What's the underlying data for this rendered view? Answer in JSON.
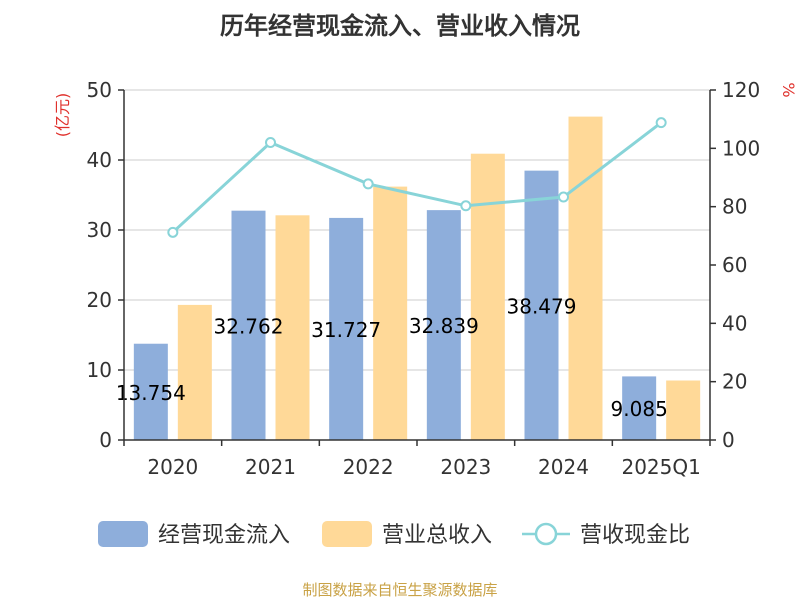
{
  "chart_data": {
    "type": "bar",
    "title": "历年经营现金流入、营业收入情况",
    "categories": [
      "2020",
      "2021",
      "2022",
      "2023",
      "2024",
      "2025Q1"
    ],
    "y_left": {
      "unit": "(亿元)",
      "min": 0,
      "max": 50,
      "ticks": [
        "0",
        "10",
        "20",
        "30",
        "40",
        "50"
      ]
    },
    "y_right": {
      "unit": "%",
      "min": 0,
      "max": 120,
      "ticks": [
        "0",
        "20",
        "40",
        "60",
        "80",
        "100",
        "120"
      ]
    },
    "series": [
      {
        "name": "经营现金流入",
        "type": "bar",
        "axis": "left",
        "color": "#8eaedb",
        "values": [
          13.754,
          32.762,
          31.727,
          32.839,
          38.479,
          9.085
        ],
        "labels": [
          "13.754",
          "32.762",
          "31.727",
          "32.839",
          "38.479",
          "9.085"
        ]
      },
      {
        "name": "营业总收入",
        "type": "bar",
        "axis": "left",
        "color": "#ffd998",
        "values": [
          19.3,
          32.1,
          36.2,
          40.9,
          46.2,
          8.5
        ]
      },
      {
        "name": "营收现金比",
        "type": "line",
        "axis": "right",
        "color": "#88d4d8",
        "values": [
          71.2,
          102.0,
          87.8,
          80.3,
          83.3,
          108.8
        ]
      }
    ],
    "grid": true,
    "legend_position": "bottom"
  },
  "source_text": "制图数据来自恒生聚源数据库",
  "colors": {
    "axis": "#333333",
    "grid": "#cccccc",
    "unit": "#e0312c",
    "source": "#c9a246"
  }
}
